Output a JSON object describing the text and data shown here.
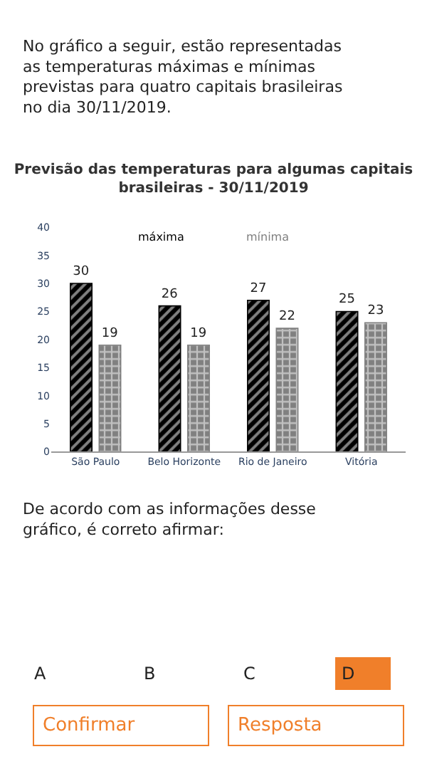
{
  "chart_data": {
    "type": "bar",
    "title": "Previsão das temperaturas para algumas capitais brasileiras - 30/11/2019",
    "categories": [
      "São Paulo",
      "Belo Horizonte",
      "Rio de Janeiro",
      "Vitória"
    ],
    "series": [
      {
        "name": "máxima",
        "color": "#000000",
        "values": [
          30,
          26,
          27,
          25
        ]
      },
      {
        "name": "mínima",
        "color": "#808080",
        "values": [
          19,
          19,
          22,
          23
        ]
      }
    ],
    "ylim": [
      0,
      40
    ],
    "yticks": [
      0,
      5,
      10,
      15,
      20,
      25,
      30,
      35,
      40
    ],
    "data_labels": true,
    "legend": "top",
    "annotations": [
      "No gráfico a seguir, estão representadas as temperaturas máximas e mínimas previstas para quatro capitais brasileiras no dia 30/11/2019.",
      "De acordo com as informações desse gráfico, é correto afirmar:",
      "A",
      "B",
      "C",
      "D",
      "Confirmar",
      "Resposta"
    ]
  }
}
